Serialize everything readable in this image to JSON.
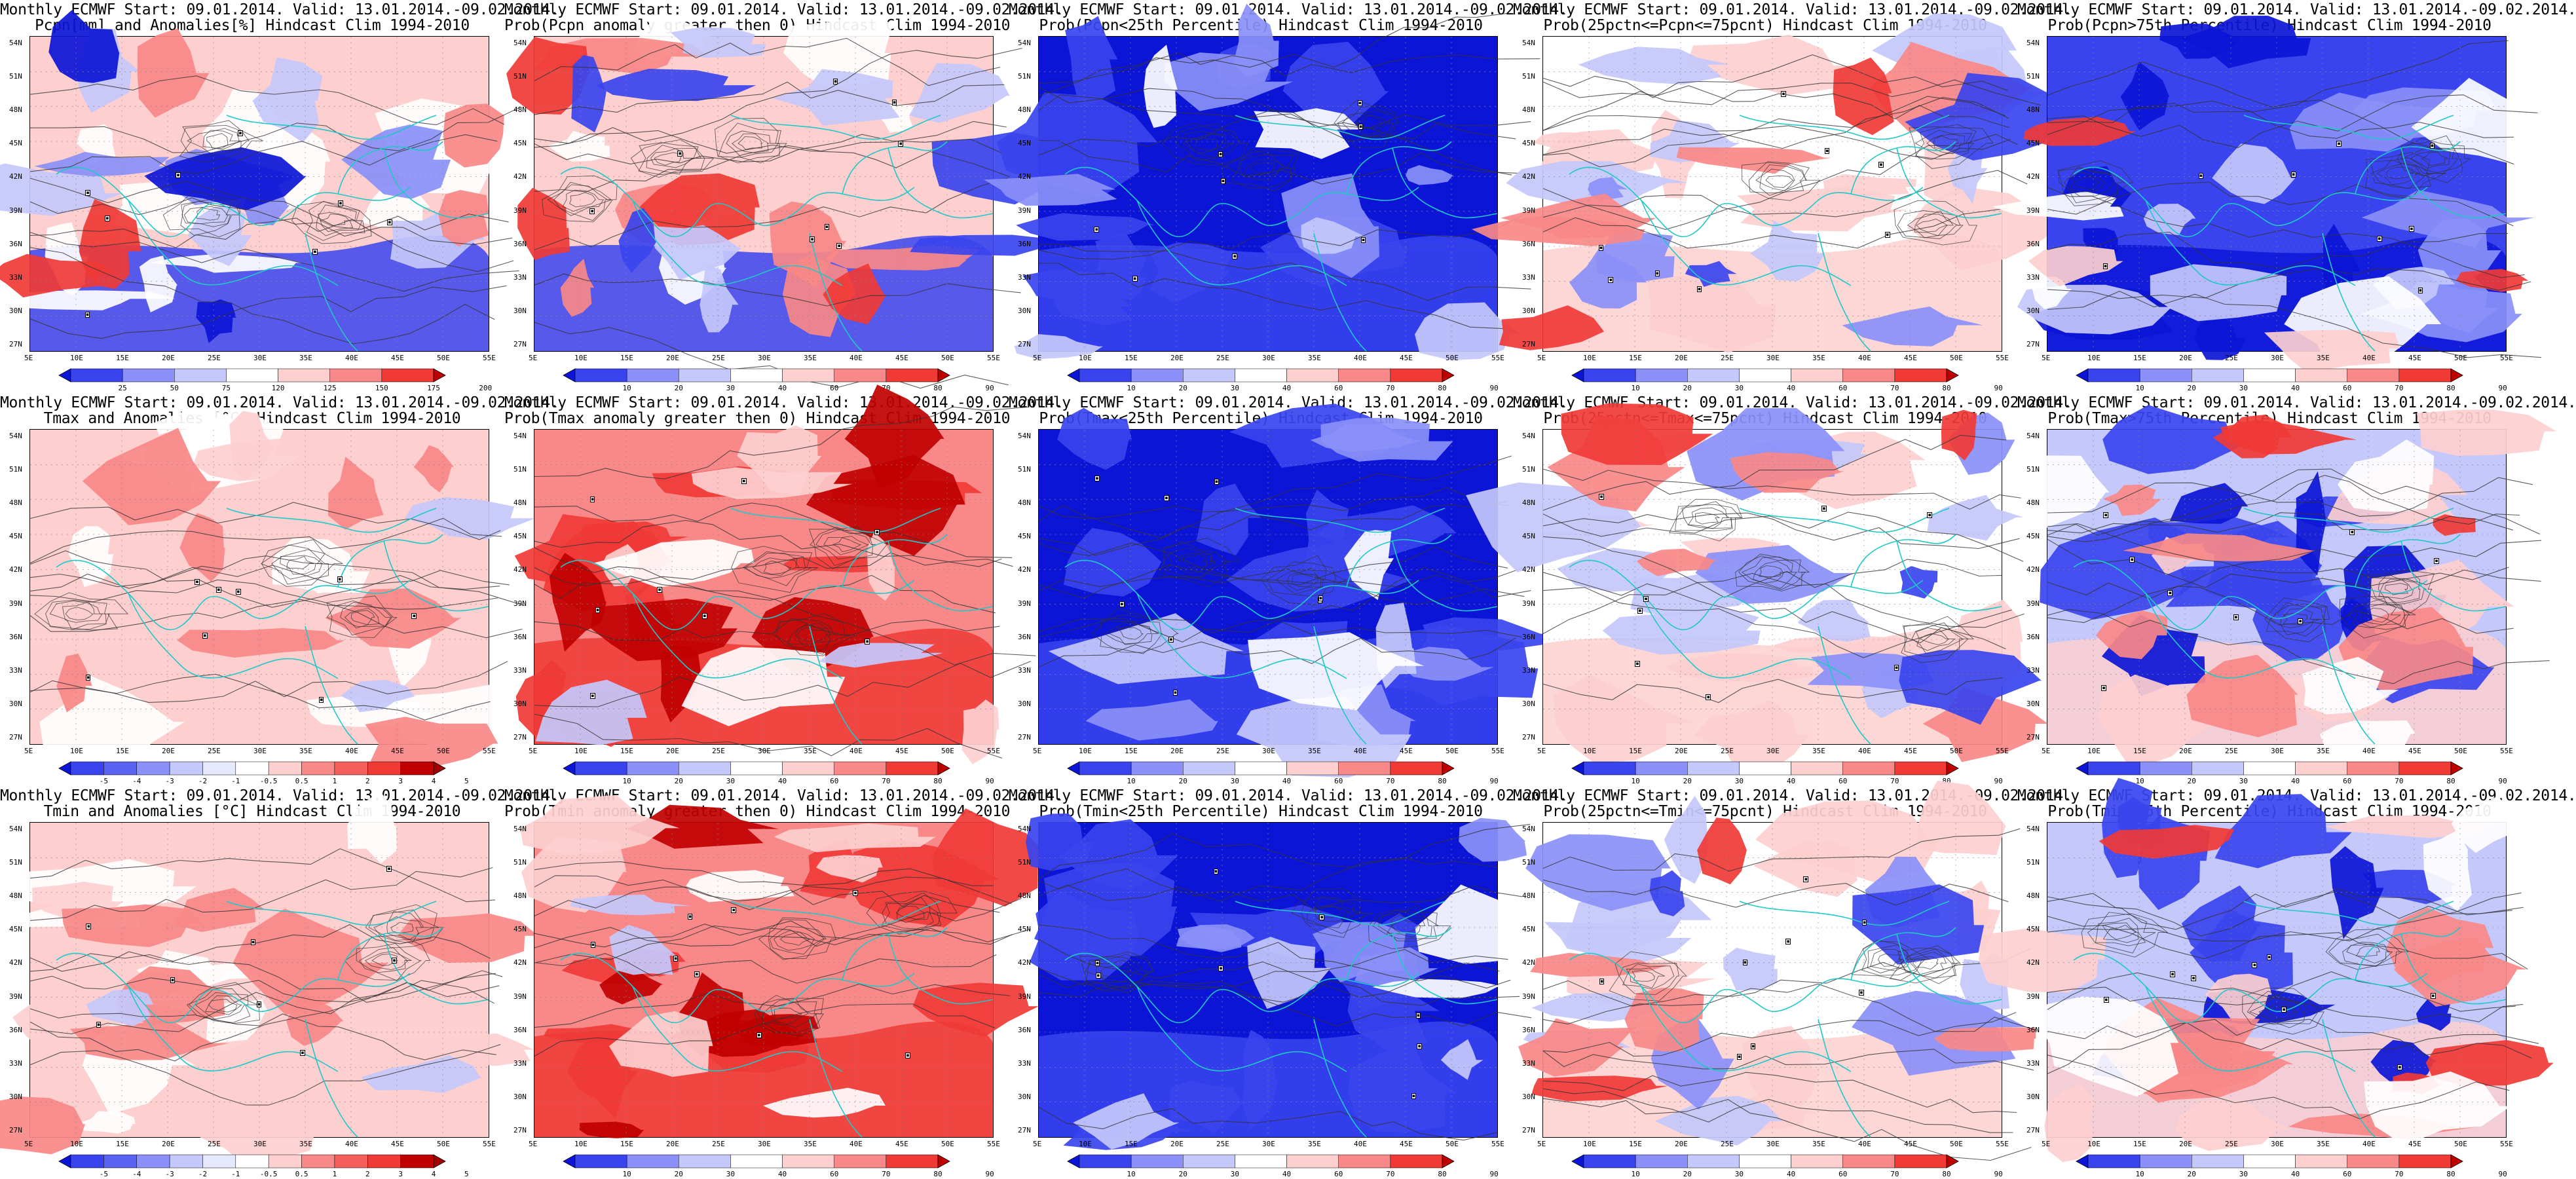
{
  "figure": {
    "lat_labels": [
      "54N",
      "51N",
      "48N",
      "45N",
      "42N",
      "39N",
      "36N",
      "33N",
      "30N",
      "27N"
    ],
    "lon_labels": [
      "5E",
      "10E",
      "15E",
      "20E",
      "25E",
      "30E",
      "35E",
      "40E",
      "45E",
      "50E",
      "55E"
    ]
  },
  "colors": {
    "dark_red": "#c00000",
    "red": "#f03a36",
    "mid_red": "#f98888",
    "light_red": "#fdcfcf",
    "white": "#ffffff",
    "light_blue": "#c4c8fb",
    "mid_blue": "#8a90f8",
    "blue": "#3a44ee",
    "dark_blue": "#0c15d6",
    "coast": "#20c8c8",
    "contour": "#333333"
  },
  "legends": {
    "pcpn": [
      "25",
      "50",
      "75",
      "120",
      "125",
      "150",
      "175",
      "200"
    ],
    "prob": [
      "10",
      "20",
      "30",
      "40",
      "60",
      "70",
      "80",
      "90"
    ],
    "temp": [
      "-5",
      "-4",
      "-3",
      "-2",
      "-1",
      "-0.5",
      "0.5",
      "1",
      "2",
      "3",
      "4",
      "5"
    ]
  },
  "rows": [
    {
      "panels": [
        {
          "title1": "Monthly ECMWF Start: 09.01.2014. Valid: 13.01.2014.-09.02.2014.",
          "title2": "Pcpn[mm] and Anomalies[%] Hindcast Clim 1994-2010",
          "legend": "pcpn",
          "theme": "pcpn_anom"
        },
        {
          "title1": "Monthly ECMWF Start: 09.01.2014. Valid: 13.01.2014.-09.02.2014.",
          "title2": "Prob(Pcpn anomaly greater then 0) Hindcast Clim 1994-2010",
          "legend": "prob",
          "theme": "pcpn_pos"
        },
        {
          "title1": "Monthly ECMWF Start: 09.01.2014. Valid: 13.01.2014.-09.02.2014.",
          "title2": "Prob(Pcpn<25th Percentile) Hindcast Clim 1994-2010",
          "legend": "prob",
          "theme": "cold_dom"
        },
        {
          "title1": "Monthly ECMWF Start: 09.01.2014. Valid: 13.01.2014.-09.02.2014.",
          "title2": "Prob(25pctn<=Pcpn<=75pcnt) Hindcast Clim 1994-2010",
          "legend": "prob",
          "theme": "mixed"
        },
        {
          "title1": "Monthly ECMWF Start: 09.01.2014. Valid: 13.01.2014.-09.02.2014.",
          "title2": "Prob(Pcpn>75th Percentile) Hindcast Clim 1994-2010",
          "legend": "prob",
          "theme": "pcpn_high"
        }
      ]
    },
    {
      "panels": [
        {
          "title1": "Monthly ECMWF Start: 09.01.2014. Valid: 13.01.2014.-09.02.2014.",
          "title2": "Tmax and Anomalies [°C] Hindcast Clim 1994-2010",
          "legend": "temp",
          "theme": "warm_light"
        },
        {
          "title1": "Monthly ECMWF Start: 09.01.2014. Valid: 13.01.2014.-09.02.2014.",
          "title2": "Prob(Tmax anomaly greater then 0) Hindcast Clim 1994-2010",
          "legend": "prob",
          "theme": "warm_strong"
        },
        {
          "title1": "Monthly ECMWF Start: 09.01.2014. Valid: 13.01.2014.-09.02.2014.",
          "title2": "Prob(Tmax<25th Percentile) Hindcast Clim 1994-2010",
          "legend": "prob",
          "theme": "cold_dom"
        },
        {
          "title1": "Monthly ECMWF Start: 09.01.2014. Valid: 13.01.2014.-09.02.2014.",
          "title2": "Prob(25pctn<=Tmax<=75pcnt) Hindcast Clim 1994-2010",
          "legend": "prob",
          "theme": "mixed"
        },
        {
          "title1": "Monthly ECMWF Start: 09.01.2014. Valid: 13.01.2014.-09.02.2014.",
          "title2": "Prob(Tmax>75th Percentile) Hindcast Clim 1994-2010",
          "legend": "prob",
          "theme": "high_warm"
        }
      ]
    },
    {
      "panels": [
        {
          "title1": "Monthly ECMWF Start: 09.01.2014. Valid: 13.01.2014.-09.02.2014.",
          "title2": "Tmin and Anomalies [°C] Hindcast Clim 1994-2010",
          "legend": "temp",
          "theme": "warm_light"
        },
        {
          "title1": "Monthly ECMWF Start: 09.01.2014. Valid: 13.01.2014.-09.02.2014.",
          "title2": "Prob(Tmin anomaly greater then 0) Hindcast Clim 1994-2010",
          "legend": "prob",
          "theme": "warm_strong"
        },
        {
          "title1": "Monthly ECMWF Start: 09.01.2014. Valid: 13.01.2014.-09.02.2014.",
          "title2": "Prob(Tmin<25th Percentile) Hindcast Clim 1994-2010",
          "legend": "prob",
          "theme": "cold_dom"
        },
        {
          "title1": "Monthly ECMWF Start: 09.01.2014. Valid: 13.01.2014.-09.02.2014.",
          "title2": "Prob(25pctn<=Tmin<=75pcnt) Hindcast Clim 1994-2010",
          "legend": "prob",
          "theme": "mixed"
        },
        {
          "title1": "Monthly ECMWF Start: 09.01.2014. Valid: 13.01.2014.-09.02.2014.",
          "title2": "Prob(Tmin>75th Percentile) Hindcast Clim 1994-2010",
          "legend": "prob",
          "theme": "high_warm"
        }
      ]
    }
  ]
}
